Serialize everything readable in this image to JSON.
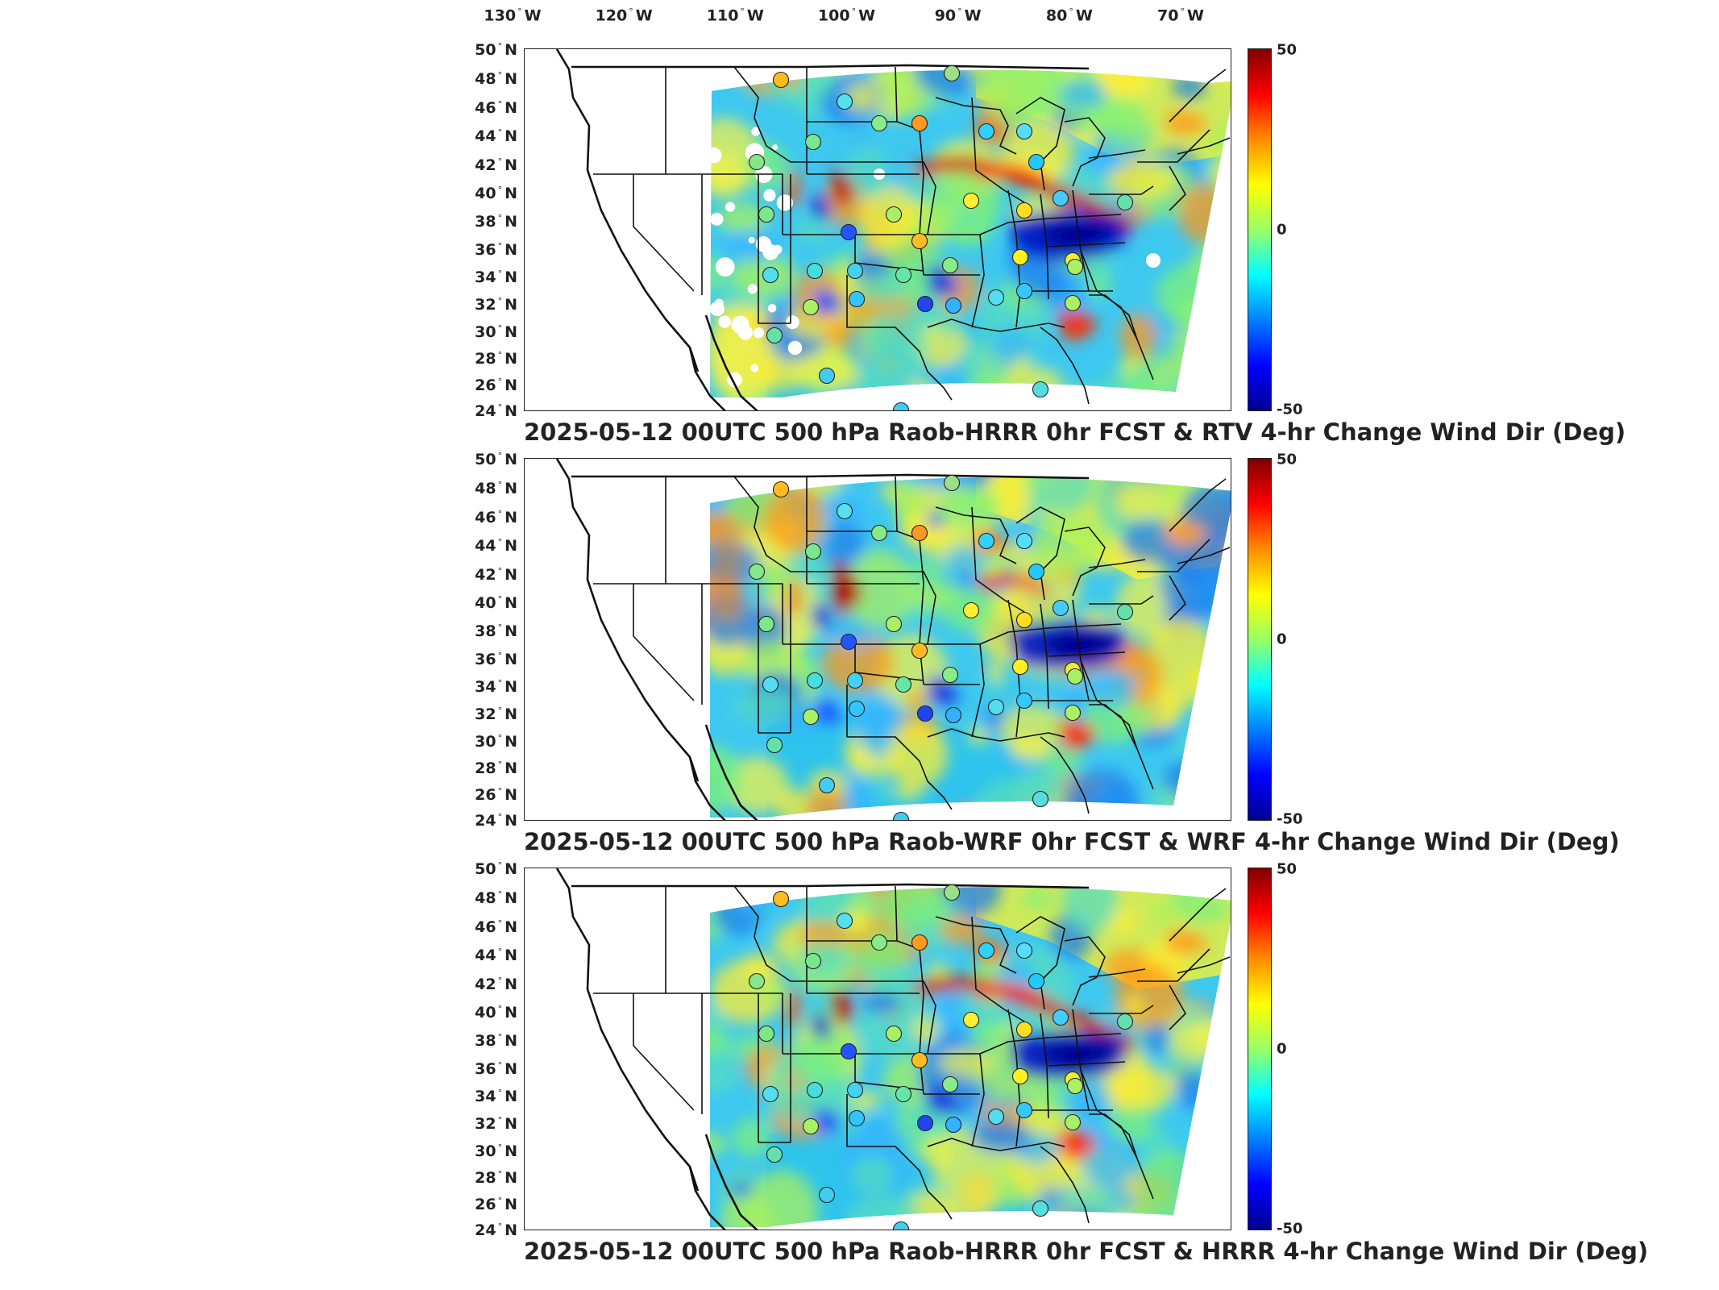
{
  "longitude_labels": [
    {
      "deg": "130",
      "dir": "W",
      "x_deg": -130
    },
    {
      "deg": "120",
      "dir": "W",
      "x_deg": -120
    },
    {
      "deg": "110",
      "dir": "W",
      "x_deg": -110
    },
    {
      "deg": "100",
      "dir": "W",
      "x_deg": -100
    },
    {
      "deg": "90",
      "dir": "W",
      "x_deg": -90
    },
    {
      "deg": "80",
      "dir": "W",
      "x_deg": -80
    },
    {
      "deg": "70",
      "dir": "W",
      "x_deg": -70
    }
  ],
  "latitude_labels": [
    {
      "deg": "50",
      "dir": "N"
    },
    {
      "deg": "48",
      "dir": "N"
    },
    {
      "deg": "46",
      "dir": "N"
    },
    {
      "deg": "44",
      "dir": "N"
    },
    {
      "deg": "42",
      "dir": "N"
    },
    {
      "deg": "40",
      "dir": "N"
    },
    {
      "deg": "38",
      "dir": "N"
    },
    {
      "deg": "36",
      "dir": "N"
    },
    {
      "deg": "34",
      "dir": "N"
    },
    {
      "deg": "32",
      "dir": "N"
    },
    {
      "deg": "30",
      "dir": "N"
    },
    {
      "deg": "28",
      "dir": "N"
    },
    {
      "deg": "26",
      "dir": "N"
    },
    {
      "deg": "24",
      "dir": "N"
    }
  ],
  "colorbar": {
    "max_label": "50",
    "mid_label": "0",
    "min_label": "-50",
    "colors": [
      "#7f0000",
      "#ff0000",
      "#ff8c00",
      "#ffff00",
      "#9aff66",
      "#00ffff",
      "#0080ff",
      "#0000ff",
      "#00008f"
    ]
  },
  "panels": [
    {
      "caption": "2025-05-12 00UTC 500 hPa Raob-HRRR 0hr FCST & RTV 4-hr Change Wind Dir (Deg)"
    },
    {
      "caption": "2025-05-12 00UTC 500 hPa Raob-WRF 0hr FCST & WRF 4-hr Change Wind Dir (Deg)"
    },
    {
      "caption": "2025-05-12 00UTC 500 hPa Raob-HRRR 0hr FCST & HRRR 4-hr Change Wind Dir (Deg)"
    }
  ]
}
